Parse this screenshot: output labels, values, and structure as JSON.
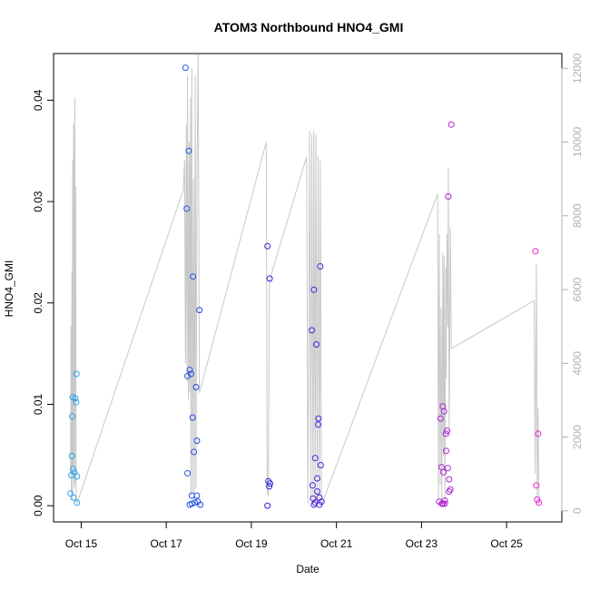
{
  "chart_data": {
    "type": "scatter",
    "title": "ATOM3 Northbound HNO4_GMI",
    "xlabel": "Date",
    "ylabel": "HNO4_GMI",
    "x_ticks": [
      "Oct 15",
      "Oct 17",
      "Oct 19",
      "Oct 21",
      "Oct 23",
      "Oct 25"
    ],
    "x_tick_days": [
      15,
      17,
      19,
      21,
      23,
      25
    ],
    "y_ticks": [
      0.0,
      0.01,
      0.02,
      0.03,
      0.04
    ],
    "y_tick_labels": [
      "0.00",
      "0.01",
      "0.02",
      "0.03",
      "0.04"
    ],
    "y2_ticks": [
      0,
      2000,
      4000,
      6000,
      8000,
      10000,
      12000
    ],
    "y2_tick_labels": [
      "0",
      "2000",
      "4000",
      "6000",
      "8000",
      "10000",
      "12000"
    ],
    "xlim": [
      14.35,
      26.3
    ],
    "ylim": [
      -0.0016,
      0.0446
    ],
    "y2lim": [
      -300,
      12400
    ],
    "colors": {
      "line": "#c8c8c8",
      "axis": "#000000",
      "right_axis": "#b0b0b0",
      "points_start": "#29a8e8",
      "points_mid": "#2222dd",
      "points_end": "#ee22cc"
    },
    "points": [
      [
        14.75,
        0.0012
      ],
      [
        14.77,
        0.003
      ],
      [
        14.78,
        0.0049
      ],
      [
        14.79,
        0.0088
      ],
      [
        14.8,
        0.0107
      ],
      [
        14.81,
        0.0036
      ],
      [
        14.82,
        0.0008
      ],
      [
        14.84,
        0.0033
      ],
      [
        14.86,
        0.0106
      ],
      [
        14.88,
        0.0102
      ],
      [
        14.89,
        0.013
      ],
      [
        14.9,
        0.0029
      ],
      [
        14.9,
        0.0003
      ],
      [
        17.45,
        0.0432
      ],
      [
        17.48,
        0.0293
      ],
      [
        17.5,
        0.0128
      ],
      [
        17.5,
        0.0032
      ],
      [
        17.53,
        0.035
      ],
      [
        17.55,
        0.0134
      ],
      [
        17.55,
        0.0001
      ],
      [
        17.58,
        0.013
      ],
      [
        17.6,
        0.001
      ],
      [
        17.6,
        0.0002
      ],
      [
        17.62,
        0.0087
      ],
      [
        17.63,
        0.0226
      ],
      [
        17.65,
        0.0053
      ],
      [
        17.67,
        0.0003
      ],
      [
        17.7,
        0.0117
      ],
      [
        17.72,
        0.0064
      ],
      [
        17.72,
        0.001
      ],
      [
        17.74,
        0.0004
      ],
      [
        17.78,
        0.0193
      ],
      [
        17.8,
        0.0001
      ],
      [
        19.38,
        0.0256
      ],
      [
        19.4,
        0.0024
      ],
      [
        19.42,
        0.0019
      ],
      [
        19.43,
        0.0224
      ],
      [
        19.44,
        0.0022
      ],
      [
        19.38,
        0.0
      ],
      [
        20.42,
        0.0173
      ],
      [
        20.44,
        0.002
      ],
      [
        20.45,
        0.0007
      ],
      [
        20.47,
        0.0213
      ],
      [
        20.47,
        0.0001
      ],
      [
        20.5,
        0.0047
      ],
      [
        20.5,
        0.0003
      ],
      [
        20.53,
        0.0159
      ],
      [
        20.55,
        0.0027
      ],
      [
        20.55,
        0.0014
      ],
      [
        20.57,
        0.008
      ],
      [
        20.58,
        0.0086
      ],
      [
        20.6,
        0.0001
      ],
      [
        20.62,
        0.0236
      ],
      [
        20.63,
        0.004
      ],
      [
        20.65,
        0.0004
      ],
      [
        20.6,
        0.0008
      ],
      [
        23.42,
        0.0004
      ],
      [
        23.45,
        0.0086
      ],
      [
        23.47,
        0.0038
      ],
      [
        23.48,
        0.0002
      ],
      [
        23.5,
        0.0098
      ],
      [
        23.5,
        0.0002
      ],
      [
        23.52,
        0.0033
      ],
      [
        23.53,
        0.0093
      ],
      [
        23.55,
        0.0005
      ],
      [
        23.55,
        0.0002
      ],
      [
        23.57,
        0.0071
      ],
      [
        23.58,
        0.0054
      ],
      [
        23.6,
        0.0074
      ],
      [
        23.62,
        0.0037
      ],
      [
        23.63,
        0.0305
      ],
      [
        23.65,
        0.0026
      ],
      [
        23.65,
        0.0014
      ],
      [
        23.68,
        0.0016
      ],
      [
        23.7,
        0.0376
      ],
      [
        23.5,
        0.0002
      ],
      [
        25.68,
        0.0251
      ],
      [
        25.7,
        0.002
      ],
      [
        25.72,
        0.0006
      ],
      [
        25.74,
        0.0071
      ],
      [
        25.76,
        0.0003
      ]
    ],
    "line_y2": [
      [
        14.75,
        1000
      ],
      [
        14.76,
        5000
      ],
      [
        14.77,
        400
      ],
      [
        14.78,
        6500
      ],
      [
        14.79,
        300
      ],
      [
        14.8,
        9500
      ],
      [
        14.81,
        1200
      ],
      [
        14.82,
        10500
      ],
      [
        14.83,
        600
      ],
      [
        14.84,
        9000
      ],
      [
        14.85,
        11200
      ],
      [
        14.86,
        700
      ],
      [
        14.87,
        8800
      ],
      [
        14.88,
        400
      ],
      [
        14.9,
        200
      ],
      [
        17.4,
        8700
      ],
      [
        17.43,
        9500
      ],
      [
        17.45,
        4000
      ],
      [
        17.47,
        10500
      ],
      [
        17.49,
        3500
      ],
      [
        17.5,
        11800
      ],
      [
        17.52,
        3000
      ],
      [
        17.54,
        10000
      ],
      [
        17.55,
        3200
      ],
      [
        17.57,
        11200
      ],
      [
        17.58,
        400
      ],
      [
        17.6,
        12000
      ],
      [
        17.62,
        500
      ],
      [
        17.64,
        9000
      ],
      [
        17.66,
        300
      ],
      [
        17.68,
        11800
      ],
      [
        17.7,
        600
      ],
      [
        17.72,
        8700
      ],
      [
        17.75,
        12400
      ],
      [
        17.78,
        3200
      ],
      [
        19.35,
        10000
      ],
      [
        19.37,
        2000
      ],
      [
        19.38,
        500
      ],
      [
        19.4,
        400
      ],
      [
        19.42,
        6000
      ],
      [
        19.44,
        6300
      ],
      [
        20.3,
        9600
      ],
      [
        20.33,
        200
      ],
      [
        20.35,
        4200
      ],
      [
        20.37,
        10300
      ],
      [
        20.4,
        300
      ],
      [
        20.42,
        10200
      ],
      [
        20.45,
        200
      ],
      [
        20.47,
        10300
      ],
      [
        20.5,
        200
      ],
      [
        20.52,
        10200
      ],
      [
        20.55,
        200
      ],
      [
        20.57,
        9600
      ],
      [
        20.6,
        300
      ],
      [
        20.62,
        9500
      ],
      [
        20.65,
        150
      ],
      [
        23.38,
        8600
      ],
      [
        23.4,
        300
      ],
      [
        23.42,
        7500
      ],
      [
        23.44,
        700
      ],
      [
        23.46,
        5500
      ],
      [
        23.48,
        200
      ],
      [
        23.5,
        7000
      ],
      [
        23.52,
        1500
      ],
      [
        23.53,
        6900
      ],
      [
        23.55,
        300
      ],
      [
        23.57,
        6600
      ],
      [
        23.58,
        3600
      ],
      [
        23.6,
        7500
      ],
      [
        23.62,
        5000
      ],
      [
        23.63,
        9300
      ],
      [
        23.65,
        2000
      ],
      [
        23.68,
        7700
      ],
      [
        23.7,
        4400
      ],
      [
        25.65,
        5700
      ],
      [
        25.67,
        1000
      ],
      [
        25.7,
        6700
      ],
      [
        25.72,
        400
      ],
      [
        25.74,
        2800
      ],
      [
        25.76,
        200
      ]
    ]
  }
}
